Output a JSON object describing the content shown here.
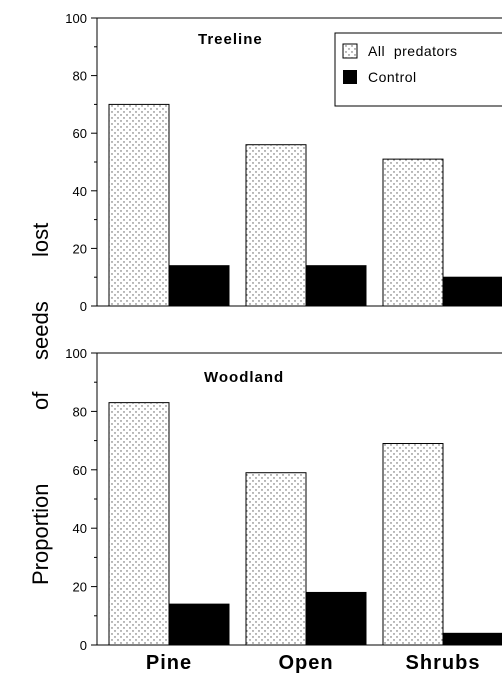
{
  "chart_data": {
    "type": "bar",
    "ylabel_parts": [
      "Proportion",
      "of",
      "seeds",
      "lost"
    ],
    "categories": [
      "Pine",
      "Open",
      "Shrubs"
    ],
    "legend": {
      "placement": "top-right",
      "entries": [
        {
          "name": "All  predators",
          "pattern": "stippled"
        },
        {
          "name": "Control",
          "color": "#000000"
        }
      ]
    },
    "ylim": [
      0,
      100
    ],
    "yticks": [
      0,
      20,
      40,
      60,
      80,
      100
    ],
    "grid": false,
    "panels": [
      {
        "title": "Treeline",
        "series": [
          {
            "name": "All  predators",
            "values": [
              70,
              56,
              51
            ]
          },
          {
            "name": "Control",
            "values": [
              14,
              14,
              10
            ]
          }
        ]
      },
      {
        "title": "Woodland",
        "series": [
          {
            "name": "All  predators",
            "values": [
              83,
              59,
              69
            ]
          },
          {
            "name": "Control",
            "values": [
              14,
              18,
              4
            ]
          }
        ]
      }
    ]
  }
}
